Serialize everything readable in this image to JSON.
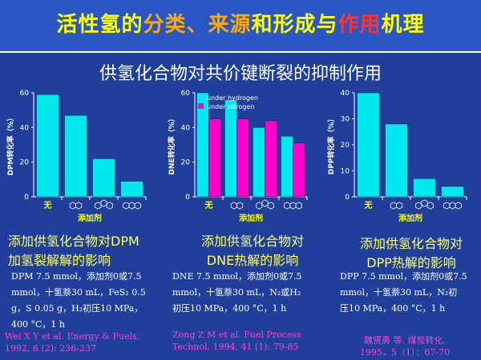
{
  "header": {
    "title_parts": [
      {
        "text": "活性氢的",
        "color": "#ffff00"
      },
      {
        "text": "分类、来源",
        "color": "#ffaa00"
      },
      {
        "text": "和形成与",
        "color": "#ffff00"
      },
      {
        "text": "作用",
        "color": "#ff3333"
      },
      {
        "text": "机理",
        "color": "#ffff00"
      }
    ],
    "subtitle": "供氢化合物对共价键断裂的抑制作用"
  },
  "colors": {
    "cyan": "#00e8ee",
    "magenta": "#ff00cc",
    "axis_label": "#ffff00"
  },
  "chart_data": [
    {
      "type": "bar",
      "ylabel": "DPM转化率（%）",
      "xlabel": "添加剂",
      "ylim": [
        0,
        60
      ],
      "yticks": [
        0,
        20,
        40,
        60
      ],
      "categories": [
        "无",
        "四氢萘",
        "9,10-二氢菲",
        "9,10-二氢蒽"
      ],
      "series": [
        {
          "name": "",
          "values": [
            59,
            47,
            22,
            9
          ]
        }
      ]
    },
    {
      "type": "bar",
      "ylabel": "DNE转化率（%）",
      "xlabel": "添加剂",
      "ylim": [
        0,
        60
      ],
      "yticks": [
        0,
        20,
        40,
        60
      ],
      "categories": [
        "无",
        "四氢萘",
        "9,10-二氢菲",
        "9,10-二氢蒽"
      ],
      "series": [
        {
          "name": "under hydrogen",
          "values": [
            60,
            56,
            40,
            35
          ]
        },
        {
          "name": "under nitrogen",
          "values": [
            45,
            45,
            44,
            31
          ]
        }
      ],
      "legend_position": "top-left"
    },
    {
      "type": "bar",
      "ylabel": "DPP转化率（%）",
      "xlabel": "添加剂",
      "ylim": [
        0,
        40
      ],
      "yticks": [
        0,
        10,
        20,
        30,
        40
      ],
      "categories": [
        "无",
        "四氢萘",
        "9,10-二氢菲",
        "9,10-二氢蒽"
      ],
      "series": [
        {
          "name": "",
          "values": [
            40,
            28,
            7,
            4
          ]
        }
      ]
    }
  ],
  "captions": {
    "dpm": [
      "添加供氢化合物对DPM",
      "加氢裂解解的影响"
    ],
    "dne": [
      "添加供氢化合物对",
      "DNE热解的影响"
    ],
    "dpp": [
      "添加供氢化合物对",
      "DPP热解的影响"
    ]
  },
  "conditions": {
    "dpm": [
      "DPM 7.5 mmol，添加剂0或7.5",
      "mmol，十氢萘30 mL，FeS₂ 0.5",
      "g，S 0.05 g，H₂初压10 MPa，",
      "400 °C，1 h"
    ],
    "dne": [
      "DNE 7.5 mmol，添加剂0或7.5",
      "mmol，十氢萘30 mL，N₂或H₂",
      "初压10 MPa，400 °C，1 h"
    ],
    "dpp": [
      "DPP 7.5 mmol，添加剂0或7.5",
      "mmol，十氢萘30 mL，N₂初",
      "压10 MPa，400 °C，1 h"
    ]
  },
  "references": {
    "dpm": [
      "Wei X Y et al. Energy & Fuels,",
      "1992, 6 (2): 236-237"
    ],
    "dne": [
      "Zong Z M et al. Fuel Process",
      "Technol, 1994, 41 (1): 79-85"
    ],
    "dpp": [
      "魏贤勇 等. 煤炭转化,",
      "1995，5（1）：67-70"
    ]
  }
}
